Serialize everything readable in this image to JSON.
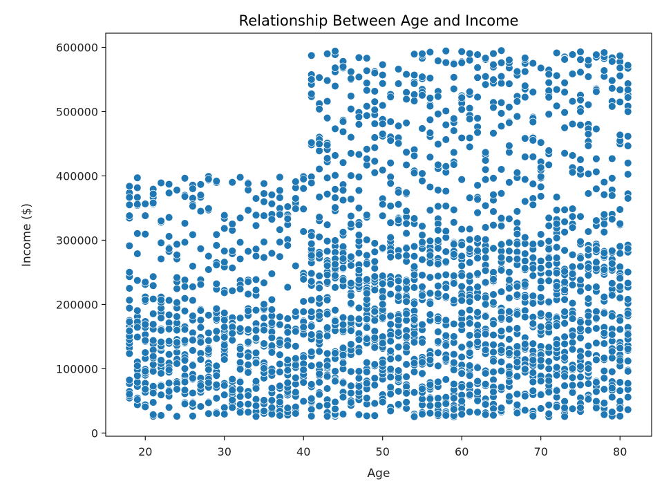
{
  "chart_data": {
    "type": "scatter",
    "title": "Relationship Between Age and Income",
    "xlabel": "Age",
    "ylabel": "Income ($)",
    "xlim": [
      15,
      84
    ],
    "ylim": [
      -5000,
      622000
    ],
    "xticks": [
      20,
      30,
      40,
      50,
      60,
      70,
      80
    ],
    "yticks": [
      0,
      100000,
      200000,
      300000,
      400000,
      500000,
      600000
    ],
    "grid": false,
    "legend": "none",
    "marker_color": "#1f77b4",
    "marker_edge_color": "#ffffff",
    "bands": [
      {
        "age_range": [
          18,
          81
        ],
        "income_range": [
          25000,
          195000
        ],
        "density": "dense"
      },
      {
        "age_range": [
          18,
          40
        ],
        "income_range": [
          200000,
          400000
        ],
        "density": "sparse"
      },
      {
        "age_range": [
          41,
          81
        ],
        "income_range": [
          200000,
          300000
        ],
        "density": "dense"
      },
      {
        "age_range": [
          41,
          81
        ],
        "income_range": [
          300000,
          595000
        ],
        "density": "sparse"
      }
    ],
    "sample_points": [
      [
        18,
        355000
      ],
      [
        18,
        338000
      ],
      [
        18,
        225000
      ],
      [
        19,
        397000
      ],
      [
        20,
        338000
      ],
      [
        21,
        372000
      ],
      [
        24,
        378000
      ],
      [
        26,
        380000
      ],
      [
        29,
        392000
      ],
      [
        31,
        390000
      ],
      [
        33,
        388000
      ],
      [
        35,
        388000
      ],
      [
        37,
        398000
      ],
      [
        39,
        391000
      ],
      [
        40,
        395000
      ],
      [
        41,
        550000
      ],
      [
        42,
        553000
      ],
      [
        43,
        590000
      ],
      [
        44,
        568000
      ],
      [
        45,
        570000
      ],
      [
        47,
        584000
      ],
      [
        49,
        560000
      ],
      [
        50,
        573000
      ],
      [
        55,
        590000
      ],
      [
        57,
        579000
      ],
      [
        59,
        574000
      ],
      [
        60,
        576000
      ],
      [
        62,
        553000
      ],
      [
        64,
        573000
      ],
      [
        65,
        576000
      ],
      [
        68,
        540000
      ],
      [
        71,
        558000
      ],
      [
        72,
        556000
      ],
      [
        75,
        593000
      ],
      [
        76,
        580000
      ],
      [
        79,
        578000
      ],
      [
        80,
        568000
      ],
      [
        81,
        572000
      ],
      [
        81,
        500000
      ],
      [
        81,
        420000
      ]
    ]
  }
}
